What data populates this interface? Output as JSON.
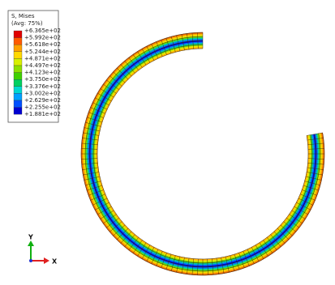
{
  "legend": {
    "title": "S, Mises",
    "subtitle": "(Avg: 75%)",
    "labels": [
      "+6.365e+02",
      "+5.992e+02",
      "+5.618e+02",
      "+5.244e+02",
      "+4.871e+02",
      "+4.497e+02",
      "+4.123e+02",
      "+3.750e+02",
      "+3.376e+02",
      "+3.002e+02",
      "+2.629e+02",
      "+2.255e+02",
      "+1.881e+02"
    ],
    "colors": [
      "#e00000",
      "#ff5a00",
      "#ffa000",
      "#ffd800",
      "#d8f000",
      "#8ee000",
      "#40d000",
      "#00d060",
      "#00d8d0",
      "#00a0ff",
      "#0050ff",
      "#0000d0"
    ]
  },
  "triad": {
    "y": "Y",
    "x": "X"
  }
}
